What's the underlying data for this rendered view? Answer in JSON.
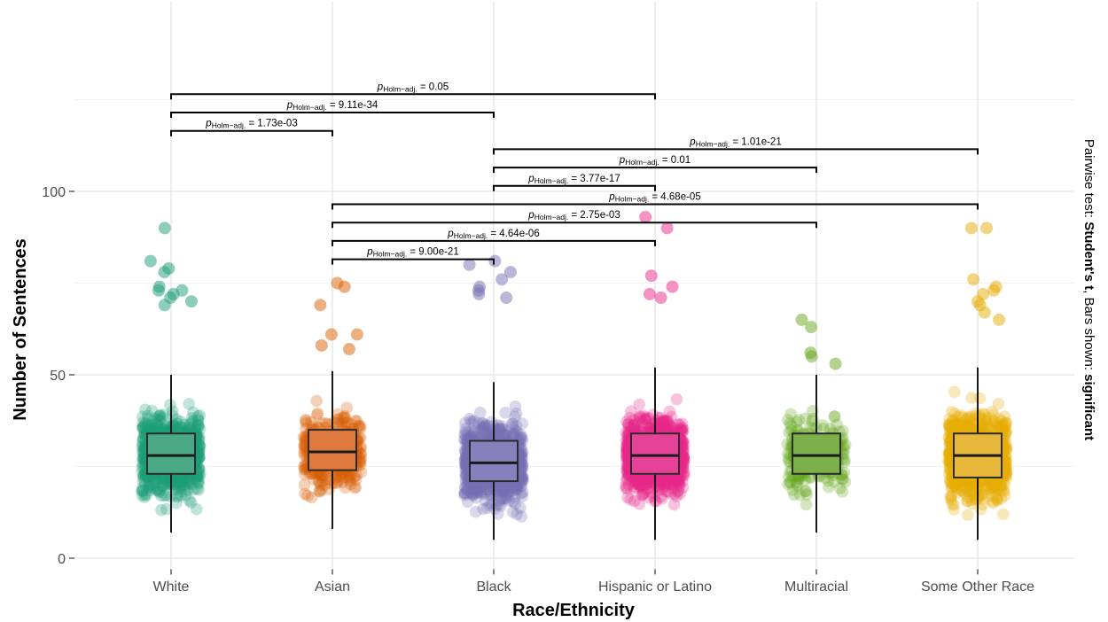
{
  "chart_data": {
    "type": "box",
    "title": "",
    "xlabel": "Race/Ethnicity",
    "ylabel": "Number of Sentences",
    "ylim": [
      -3,
      135
    ],
    "yticks": [
      0,
      50,
      100
    ],
    "grid": true,
    "categories": [
      "White",
      "Asian",
      "Black",
      "Hispanic or Latino",
      "Multiracial",
      "Some Other Race"
    ],
    "colors": [
      "#1b9e77",
      "#d95f02",
      "#7570b3",
      "#e7298a",
      "#66a61e",
      "#e6ab02"
    ],
    "box_fill_colors": [
      "#4aa886",
      "#e07a3e",
      "#8880bd",
      "#e64398",
      "#7bb04a",
      "#e8b83d"
    ],
    "boxes": [
      {
        "category": "White",
        "q1": 23,
        "median": 28,
        "q3": 34,
        "whisker_low": 7,
        "whisker_high": 50
      },
      {
        "category": "Asian",
        "q1": 24,
        "median": 29,
        "q3": 35,
        "whisker_low": 8,
        "whisker_high": 51
      },
      {
        "category": "Black",
        "q1": 21,
        "median": 26,
        "q3": 32,
        "whisker_low": 5,
        "whisker_high": 48
      },
      {
        "category": "Hispanic or Latino",
        "q1": 23,
        "median": 28,
        "q3": 34,
        "whisker_low": 5,
        "whisker_high": 52
      },
      {
        "category": "Multiracial",
        "q1": 23,
        "median": 28,
        "q3": 34,
        "whisker_low": 7,
        "whisker_high": 50
      },
      {
        "category": "Some Other Race",
        "q1": 22,
        "median": 28,
        "q3": 34,
        "whisker_low": 5,
        "whisker_high": 52
      }
    ],
    "points": [
      {
        "category": "White",
        "density": "high",
        "range": [
          4,
          66
        ],
        "outliers": [
          90,
          81,
          79,
          78,
          74,
          73,
          73,
          72,
          71,
          70,
          69
        ]
      },
      {
        "category": "Asian",
        "density": "medium",
        "range": [
          7,
          60
        ],
        "outliers": [
          75,
          74,
          69,
          61,
          61,
          58,
          57
        ]
      },
      {
        "category": "Black",
        "density": "high",
        "range": [
          4,
          70
        ],
        "outliers": [
          81,
          80,
          78,
          76,
          74,
          73,
          72,
          71
        ]
      },
      {
        "category": "Hispanic or Latino",
        "density": "high",
        "range": [
          4,
          67
        ],
        "outliers": [
          93,
          90,
          77,
          74,
          72,
          71
        ]
      },
      {
        "category": "Multiracial",
        "density": "low",
        "range": [
          5,
          52
        ],
        "outliers": [
          65,
          63,
          56,
          55,
          53
        ]
      },
      {
        "category": "Some Other Race",
        "density": "high",
        "range": [
          4,
          63
        ],
        "outliers": [
          90,
          90,
          76,
          74,
          73,
          72,
          70,
          69,
          67,
          65
        ]
      }
    ],
    "comparisons": [
      {
        "from": "White",
        "to": "Hispanic or Latino",
        "y": 126.5,
        "p_label": "p",
        "p_sub": "Holm−adj.",
        "p_value": "= 0.05"
      },
      {
        "from": "White",
        "to": "Black",
        "y": 121.5,
        "p_label": "p",
        "p_sub": "Holm−adj.",
        "p_value": "= 9.11e-34"
      },
      {
        "from": "White",
        "to": "Asian",
        "y": 116.5,
        "p_label": "p",
        "p_sub": "Holm−adj.",
        "p_value": "= 1.73e-03"
      },
      {
        "from": "Black",
        "to": "Some Other Race",
        "y": 111.5,
        "p_label": "p",
        "p_sub": "Holm−adj.",
        "p_value": "= 1.01e-21"
      },
      {
        "from": "Black",
        "to": "Multiracial",
        "y": 106.5,
        "p_label": "p",
        "p_sub": "Holm−adj.",
        "p_value": "= 0.01"
      },
      {
        "from": "Black",
        "to": "Hispanic or Latino",
        "y": 101.5,
        "p_label": "p",
        "p_sub": "Holm−adj.",
        "p_value": "= 3.77e-17"
      },
      {
        "from": "Asian",
        "to": "Some Other Race",
        "y": 96.5,
        "p_label": "p",
        "p_sub": "Holm−adj.",
        "p_value": "= 4.68e-05"
      },
      {
        "from": "Asian",
        "to": "Multiracial",
        "y": 91.5,
        "p_label": "p",
        "p_sub": "Holm−adj.",
        "p_value": "= 2.75e-03"
      },
      {
        "from": "Asian",
        "to": "Hispanic or Latino",
        "y": 86.5,
        "p_label": "p",
        "p_sub": "Holm−adj.",
        "p_value": "= 4.64e-06"
      },
      {
        "from": "Asian",
        "to": "Black",
        "y": 81.5,
        "p_label": "p",
        "p_sub": "Holm−adj.",
        "p_value": "= 9.00e-21"
      }
    ],
    "caption": {
      "prefix": "Pairwise test: ",
      "test": "Student's t",
      "middle": ", Bars shown: ",
      "shown": "significant"
    }
  }
}
